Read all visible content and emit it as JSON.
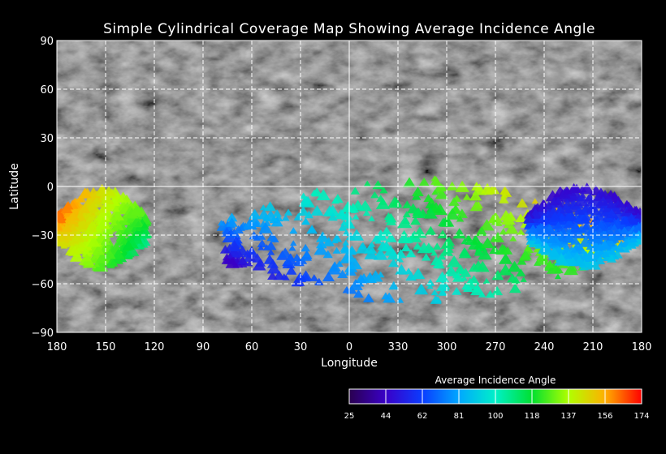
{
  "title": "Simple Cylindrical Coverage Map Showing Average Incidence Angle",
  "xlabel": "Longitude",
  "ylabel": "Latitude",
  "x_ticks": [
    "180",
    "150",
    "120",
    "90",
    "60",
    "30",
    "0",
    "330",
    "300",
    "270",
    "240",
    "210",
    "180"
  ],
  "y_ticks": [
    "90",
    "60",
    "30",
    "0",
    "−30",
    "−60",
    "−90"
  ],
  "colorbar": {
    "title": "Average Incidence Angle",
    "tick_labels": [
      "25",
      "44",
      "62",
      "81",
      "100",
      "118",
      "137",
      "156",
      "174"
    ],
    "stops": [
      "#2a0050",
      "#3a00c8",
      "#0a3cff",
      "#00a8ff",
      "#00f0c8",
      "#00e030",
      "#b0ff00",
      "#ffb000",
      "#ff0000"
    ]
  },
  "colors": {
    "background": "#000000",
    "grid": "#ffffff",
    "basemap": "#5a5a5a"
  },
  "chart_data": {
    "type": "heatmap",
    "projection": "simple cylindrical",
    "xlim": [
      180,
      -180
    ],
    "ylim": [
      -90,
      90
    ],
    "grid": true,
    "legend": "colorbar bottom-right",
    "value_range": [
      25,
      174
    ],
    "coverage_regions": [
      {
        "lon_range": [
          180,
          125
        ],
        "lat_range": [
          -50,
          -2
        ],
        "incidence_range": [
          100,
          165
        ]
      },
      {
        "lon_range": [
          80,
          -165
        ],
        "lat_range": [
          -72,
          5
        ],
        "incidence_range": [
          40,
          170
        ]
      },
      {
        "lon_range": [
          -110,
          -180
        ],
        "lat_range": [
          -50,
          0
        ],
        "incidence_range": [
          45,
          100
        ]
      }
    ]
  }
}
